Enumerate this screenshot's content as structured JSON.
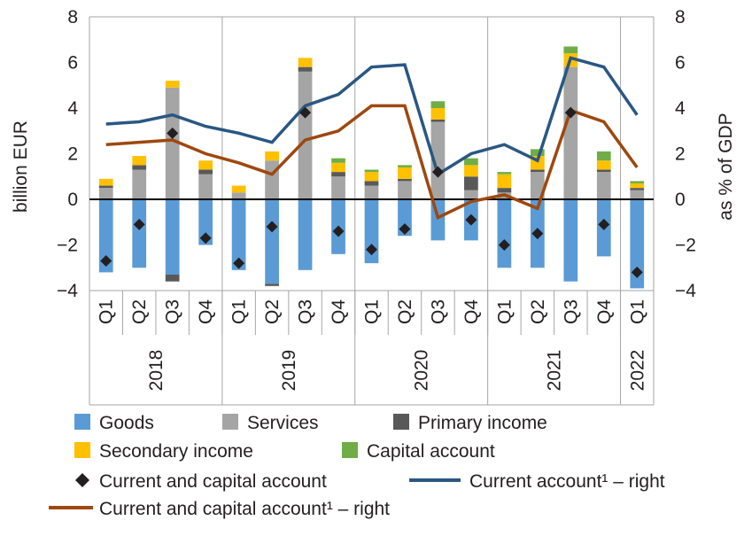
{
  "chart_data": {
    "type": "bar",
    "stacked": true,
    "ylabel_left": "billion  EUR",
    "ylabel_right": "as % of GDP",
    "ylim_left": [
      -4,
      8
    ],
    "ylim_right": [
      -4,
      8
    ],
    "yticks_left": [
      "8",
      "6",
      "4",
      "2",
      "0",
      "−2",
      "−4"
    ],
    "yticks_right": [
      "8",
      "6",
      "4",
      "2",
      "0",
      "−2",
      "−4"
    ],
    "categories": [
      "Q1",
      "Q2",
      "Q3",
      "Q4",
      "Q1",
      "Q2",
      "Q3",
      "Q4",
      "Q1",
      "Q2",
      "Q3",
      "Q4",
      "Q1",
      "Q2",
      "Q3",
      "Q4",
      "Q1"
    ],
    "years": [
      {
        "label": "2018",
        "count": 4
      },
      {
        "label": "2019",
        "count": 4
      },
      {
        "label": "2020",
        "count": 4
      },
      {
        "label": "2021",
        "count": 4
      },
      {
        "label": "2022",
        "count": 1
      }
    ],
    "bar_series": [
      {
        "name": "Goods",
        "color": "#5b9bd5",
        "values": [
          -3.2,
          -3.0,
          -3.3,
          -2.0,
          -3.1,
          -3.7,
          -3.1,
          -2.4,
          -2.8,
          -1.6,
          -1.8,
          -1.8,
          -3.0,
          -3.0,
          -3.6,
          -2.5,
          -3.9
        ]
      },
      {
        "name": "Services",
        "color": "#a5a5a5",
        "values": [
          0.5,
          1.3,
          4.9,
          1.1,
          0.3,
          1.7,
          5.6,
          1.0,
          0.6,
          0.8,
          3.4,
          0.4,
          0.3,
          1.2,
          5.8,
          1.2,
          0.4
        ]
      },
      {
        "name": "Primary income",
        "color": "#595959",
        "values": [
          0.1,
          0.2,
          -0.3,
          0.2,
          0.0,
          -0.1,
          0.2,
          0.2,
          0.2,
          0.1,
          0.1,
          0.6,
          0.2,
          0.1,
          0.0,
          0.1,
          0.1
        ]
      },
      {
        "name": "Secondary income",
        "color": "#ffc000",
        "values": [
          0.3,
          0.4,
          0.3,
          0.4,
          0.3,
          0.4,
          0.4,
          0.4,
          0.4,
          0.5,
          0.5,
          0.5,
          0.6,
          0.6,
          0.6,
          0.4,
          0.2
        ]
      },
      {
        "name": "Capital account",
        "color": "#70ad47",
        "values": [
          0.0,
          0.0,
          0.0,
          0.0,
          0.0,
          0.0,
          0.0,
          0.2,
          0.1,
          0.1,
          0.3,
          0.3,
          0.1,
          0.3,
          0.3,
          0.4,
          0.1
        ]
      }
    ],
    "marker_series": {
      "name": "Current and capital account",
      "color": "#231f20",
      "values": [
        -2.7,
        -1.1,
        2.9,
        -1.7,
        -2.8,
        -1.2,
        3.8,
        -1.4,
        -2.2,
        -1.3,
        1.2,
        -0.9,
        -2.0,
        -1.5,
        3.8,
        -1.1,
        -3.2
      ]
    },
    "line_series": [
      {
        "name": "Current account¹ – right",
        "color": "#2a5783",
        "axis": "right",
        "values": [
          3.3,
          3.4,
          3.7,
          3.2,
          2.9,
          2.5,
          4.1,
          4.6,
          5.8,
          5.9,
          1.1,
          2.0,
          2.4,
          1.7,
          6.2,
          5.8,
          3.7
        ]
      },
      {
        "name": "Current and capital account¹ – right",
        "color": "#9e480e",
        "axis": "right",
        "values": [
          2.4,
          2.5,
          2.6,
          2.0,
          1.6,
          1.1,
          2.6,
          3.0,
          4.1,
          4.1,
          -0.8,
          -0.1,
          0.2,
          -0.4,
          3.9,
          3.4,
          1.4
        ]
      }
    ]
  },
  "legend": {
    "goods": "Goods",
    "services": "Services",
    "primary_income": "Primary income",
    "secondary_income": "Secondary income",
    "capital_account": "Capital account",
    "current_and_capital_account": "Current and capital account",
    "current_account_right": "Current account¹ – right",
    "current_and_capital_account_right": "Current and capital account¹ – right"
  }
}
